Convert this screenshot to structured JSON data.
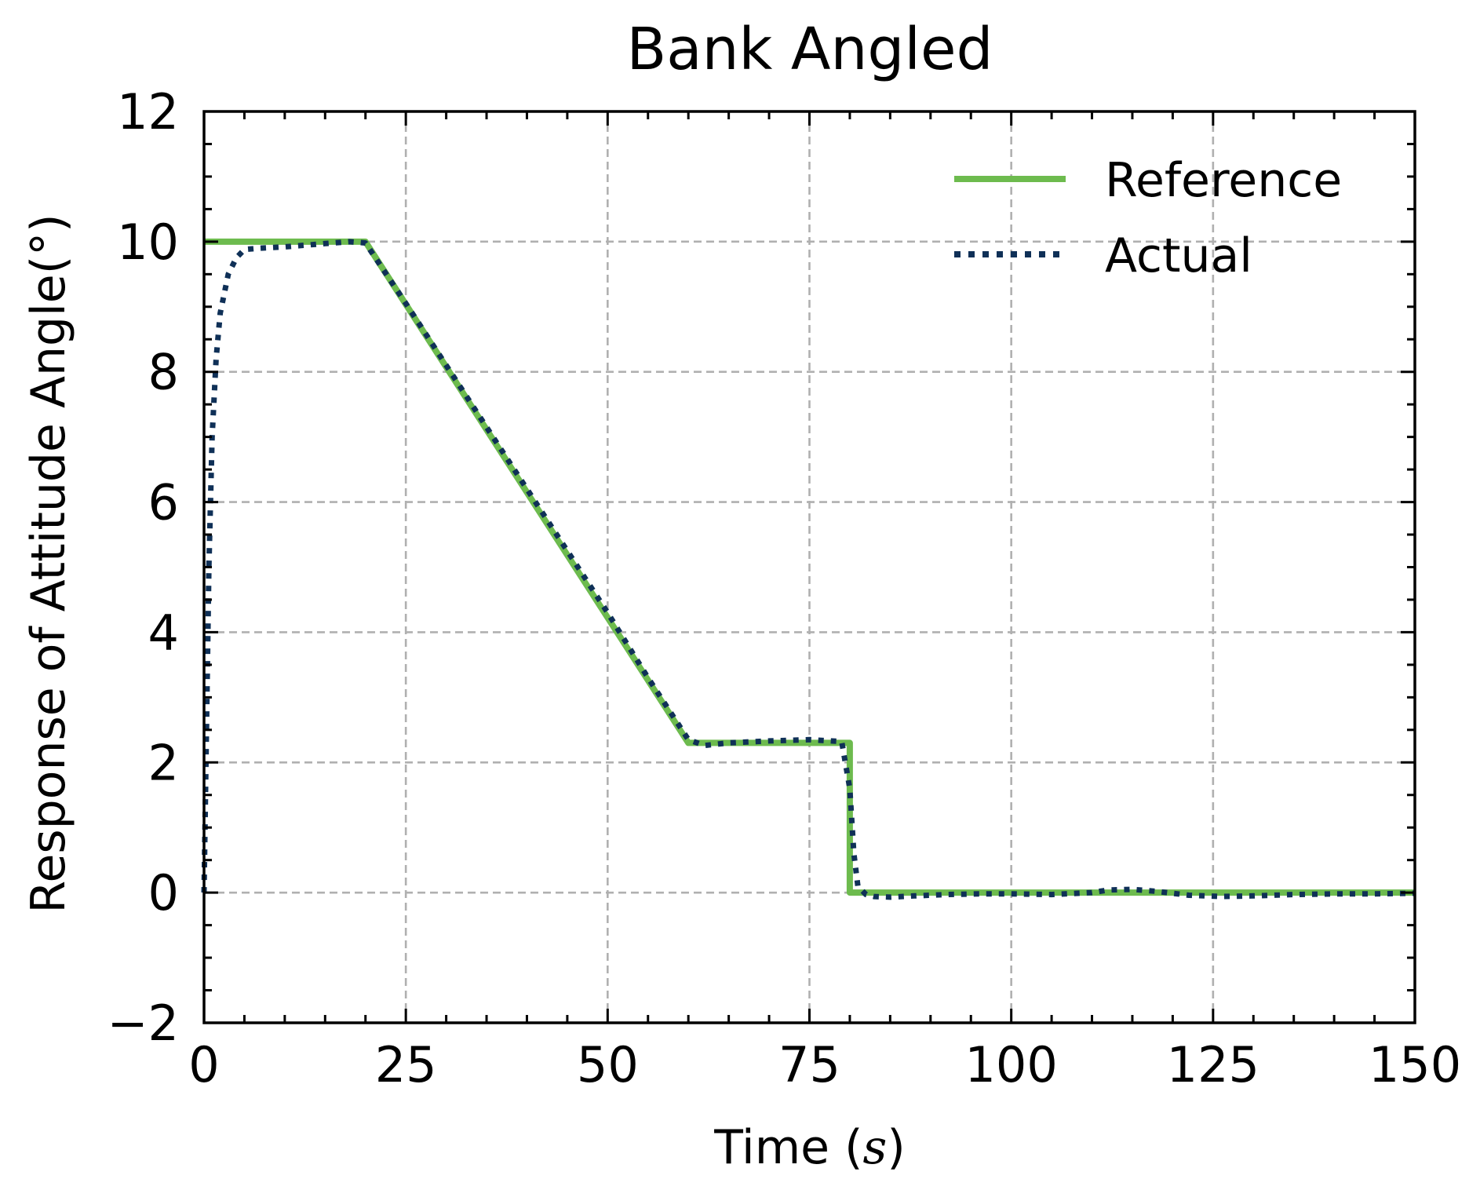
{
  "chart_data": {
    "type": "line",
    "title": "Bank Angled",
    "xlabel": "Time (",
    "xlabel_var": "s",
    "xlabel_close": ")",
    "ylabel": "Response of Attitude Angle(°)",
    "xlim": [
      0,
      150
    ],
    "ylim": [
      -2,
      12
    ],
    "xticks": [
      0,
      25,
      50,
      75,
      100,
      125,
      150
    ],
    "yticks": [
      -2,
      0,
      2,
      4,
      6,
      8,
      10,
      12
    ],
    "xtick_labels": [
      "0",
      "25",
      "50",
      "75",
      "100",
      "125",
      "150"
    ],
    "ytick_labels": [
      "−2",
      "0",
      "2",
      "4",
      "6",
      "8",
      "10",
      "12"
    ],
    "x_minor_step": 5,
    "y_minor_step": 0.5,
    "grid": true,
    "legend_position": "top-right",
    "series": [
      {
        "name": "Reference",
        "color": "#6dbb4e",
        "style": "solid",
        "x": [
          0,
          20,
          60,
          80,
          80,
          150
        ],
        "y": [
          10,
          10,
          2.3,
          2.3,
          0,
          0
        ]
      },
      {
        "name": "Actual",
        "color": "#0f3057",
        "style": "dotted",
        "x": [
          0,
          0.3,
          0.6,
          1.0,
          1.5,
          2.0,
          3.0,
          4.0,
          5.0,
          7.0,
          10.0,
          15.0,
          18.0,
          20.0,
          25.0,
          30.0,
          40.0,
          50.0,
          55.0,
          60.0,
          62.0,
          65.0,
          70.0,
          75.0,
          79.0,
          80.0,
          80.5,
          81.0,
          82.0,
          83.0,
          85.0,
          88.0,
          92.0,
          96.0,
          100.0,
          105.0,
          110.0,
          112.0,
          115.0,
          118.0,
          122.0,
          126.0,
          130.0,
          135.0,
          140.0,
          145.0,
          150.0
        ],
        "y": [
          0.0,
          2.5,
          5.0,
          7.0,
          8.2,
          8.9,
          9.5,
          9.75,
          9.88,
          9.9,
          9.92,
          9.97,
          10.0,
          9.98,
          9.05,
          8.1,
          6.2,
          4.3,
          3.3,
          2.35,
          2.26,
          2.3,
          2.33,
          2.35,
          2.32,
          1.6,
          0.6,
          0.1,
          -0.03,
          -0.06,
          -0.07,
          -0.05,
          -0.03,
          -0.02,
          -0.02,
          -0.03,
          0.0,
          0.04,
          0.05,
          0.02,
          -0.04,
          -0.06,
          -0.05,
          -0.03,
          -0.02,
          -0.02,
          -0.01
        ]
      }
    ]
  }
}
